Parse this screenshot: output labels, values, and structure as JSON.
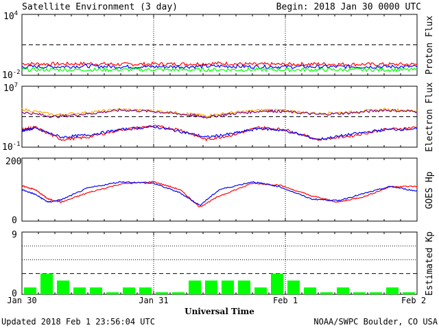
{
  "header": {
    "title": "Satellite Environment (3 day)",
    "begin": "Begin:  2018 Jan 30 0000 UTC"
  },
  "footer": {
    "updated": "Updated 2018 Feb  1 23:56:04 UTC",
    "credit": "NOAA/SWPC Boulder, CO USA"
  },
  "x_axis": {
    "title": "Universal Time",
    "ticks": [
      "Jan 30",
      "Jan 31",
      "Feb 1",
      "Feb 2"
    ],
    "range_days": [
      0,
      3
    ]
  },
  "colors": {
    "red": "#ff0000",
    "blue": "#0000ff",
    "green": "#00ff00",
    "orange": "#ffa500",
    "purple": "#800080",
    "kp_bar": "#00ff00",
    "axis": "#000000"
  },
  "chart_data": [
    {
      "type": "line",
      "panel": "proton",
      "ylabel": "Proton Flux",
      "scale": "log",
      "ylim": [
        0.01,
        10000
      ],
      "tick_labels": {
        "top_base": "10",
        "top_exp": "4",
        "bottom_base": "10",
        "bottom_exp": "-2"
      },
      "threshold": 10,
      "grid": "dashed threshold + dotted day dividers",
      "series": [
        {
          "color": "red",
          "x": [
            0,
            0.25,
            0.5,
            0.75,
            1.0,
            1.25,
            1.5,
            1.75,
            2.0,
            2.25,
            2.5,
            2.75,
            3.0
          ],
          "y": [
            0.14,
            0.13,
            0.14,
            0.12,
            0.13,
            0.13,
            0.15,
            0.12,
            0.12,
            0.13,
            0.12,
            0.12,
            0.12
          ]
        },
        {
          "color": "blue",
          "x": [
            0,
            0.25,
            0.5,
            0.75,
            1.0,
            1.25,
            1.5,
            1.75,
            2.0,
            2.25,
            2.5,
            2.75,
            3.0
          ],
          "y": [
            0.07,
            0.07,
            0.08,
            0.07,
            0.07,
            0.07,
            0.08,
            0.07,
            0.07,
            0.07,
            0.07,
            0.07,
            0.07
          ]
        },
        {
          "color": "green",
          "x": [
            0,
            0.25,
            0.5,
            0.75,
            1.0,
            1.25,
            1.5,
            1.75,
            2.0,
            2.25,
            2.5,
            2.75,
            3.0
          ],
          "y": [
            0.035,
            0.035,
            0.035,
            0.035,
            0.035,
            0.035,
            0.035,
            0.035,
            0.035,
            0.035,
            0.035,
            0.035,
            0.035
          ]
        }
      ]
    },
    {
      "type": "line",
      "panel": "electron",
      "ylabel": "Electron Flux",
      "scale": "log",
      "ylim": [
        0.1,
        10000000
      ],
      "tick_labels": {
        "top_base": "10",
        "top_exp": "7",
        "bottom_base": "10",
        "bottom_exp": "-1"
      },
      "threshold": 1000,
      "series": [
        {
          "color": "orange",
          "x": [
            0,
            0.25,
            0.5,
            0.75,
            1.0,
            1.25,
            1.4,
            1.6,
            1.85,
            2.0,
            2.25,
            2.5,
            2.75,
            3.0
          ],
          "y": [
            10000,
            1700,
            3600,
            9000,
            6000,
            2600,
            1300,
            3500,
            8000,
            6000,
            2600,
            4000,
            9000,
            6000
          ]
        },
        {
          "color": "purple",
          "x": [
            0,
            0.25,
            0.5,
            0.75,
            1.0,
            1.25,
            1.4,
            1.6,
            1.85,
            2.0,
            2.25,
            2.5,
            2.75,
            3.0
          ],
          "y": [
            4000,
            1000,
            2400,
            7500,
            5000,
            1800,
            900,
            2500,
            6000,
            4800,
            2000,
            3200,
            7500,
            4500
          ]
        },
        {
          "color": "red",
          "x": [
            0,
            0.1,
            0.3,
            0.5,
            0.75,
            1.0,
            1.2,
            1.4,
            1.6,
            1.8,
            2.0,
            2.25,
            2.5,
            2.75,
            3.0
          ],
          "y": [
            20,
            40,
            1,
            2,
            20,
            60,
            20,
            1,
            4,
            40,
            20,
            1,
            3,
            20,
            40
          ]
        },
        {
          "color": "blue",
          "x": [
            0,
            0.1,
            0.3,
            0.5,
            0.75,
            1.0,
            1.2,
            1.4,
            1.6,
            1.8,
            2.0,
            2.25,
            2.5,
            2.75,
            3.0
          ],
          "y": [
            15,
            30,
            2,
            4,
            20,
            50,
            12,
            2,
            6,
            30,
            15,
            1,
            5,
            20,
            25
          ]
        }
      ]
    },
    {
      "type": "line",
      "panel": "goes_hp",
      "ylabel": "GOES Hp",
      "ylim": [
        0,
        200
      ],
      "yticks": [
        "0",
        "200"
      ],
      "series": [
        {
          "color": "red",
          "x": [
            0,
            0.1,
            0.2,
            0.3,
            0.5,
            0.75,
            1.0,
            1.2,
            1.35,
            1.5,
            1.75,
            1.95,
            2.2,
            2.4,
            2.6,
            2.8,
            3.0
          ],
          "y": [
            112,
            100,
            70,
            60,
            90,
            118,
            125,
            100,
            45,
            80,
            120,
            115,
            80,
            60,
            78,
            110,
            110
          ]
        },
        {
          "color": "blue",
          "x": [
            0,
            0.1,
            0.2,
            0.3,
            0.5,
            0.75,
            1.0,
            1.2,
            1.35,
            1.5,
            1.75,
            1.95,
            2.2,
            2.4,
            2.6,
            2.8,
            3.0
          ],
          "y": [
            100,
            85,
            60,
            68,
            105,
            125,
            120,
            90,
            50,
            100,
            125,
            110,
            70,
            65,
            88,
            110,
            95
          ]
        }
      ]
    },
    {
      "type": "bar",
      "panel": "kp",
      "ylabel": "Estimated Kp",
      "ylim": [
        0,
        9
      ],
      "yticks": [
        "0",
        "9"
      ],
      "bar_width_days": 0.125,
      "values": [
        1.0,
        3.0,
        2.0,
        1.0,
        1.0,
        0.3,
        1.0,
        1.0,
        0.3,
        0.3,
        2.0,
        2.0,
        2.0,
        2.0,
        1.0,
        3.0,
        2.0,
        1.0,
        0.3,
        1.0,
        0.3,
        0.3,
        1.0,
        0.3
      ]
    }
  ]
}
